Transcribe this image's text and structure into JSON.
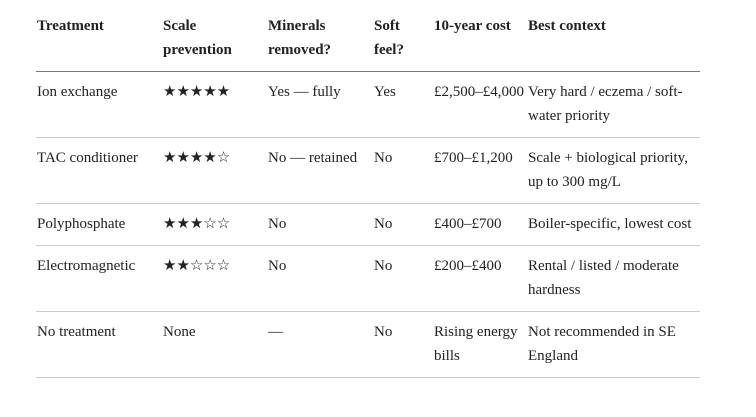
{
  "table": {
    "header": [
      "Treatment",
      "Scale prevention",
      "Minerals removed?",
      "Soft feel?",
      "10-year cost",
      "Best context"
    ],
    "rows": [
      [
        "Ion exchange",
        "★★★★★",
        "Yes — fully",
        "Yes",
        "£2,500–£4,000",
        "Very hard / eczema / soft-water priority"
      ],
      [
        "TAC conditioner",
        "★★★★☆",
        "No — retained",
        "No",
        "£700–£1,200",
        "Scale + biological priority, up to 300 mg/L"
      ],
      [
        "Polyphosphate",
        "★★★☆☆",
        "No",
        "No",
        "£400–£700",
        "Boiler-specific, lowest cost"
      ],
      [
        "Electromagnetic",
        "★★☆☆☆",
        "No",
        "No",
        "£200–£400",
        "Rental / listed / moderate hardness"
      ],
      [
        "No treatment",
        "None",
        "—",
        "No",
        "Rising energy bills",
        "Not recommended in SE England"
      ]
    ]
  }
}
